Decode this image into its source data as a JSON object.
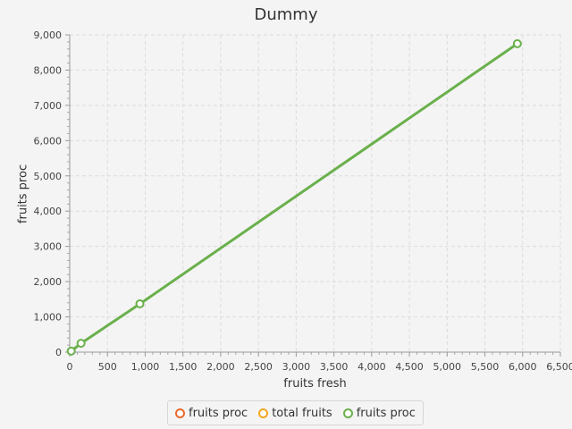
{
  "chart_data": {
    "type": "line",
    "title": "Dummy",
    "xlabel": "fruits fresh",
    "ylabel": "fruits proc",
    "xlim": [
      0,
      6500
    ],
    "ylim": [
      0,
      9000
    ],
    "x_ticks": [
      0,
      500,
      1000,
      1500,
      2000,
      2500,
      3000,
      3500,
      4000,
      4500,
      5000,
      5500,
      6000,
      6500
    ],
    "y_ticks": [
      0,
      1000,
      2000,
      3000,
      4000,
      5000,
      6000,
      7000,
      8000,
      9000
    ],
    "x_tick_labels": [
      "0",
      "500",
      "1,000",
      "1,500",
      "2,000",
      "2,500",
      "3,000",
      "3,500",
      "4,000",
      "4,500",
      "5,000",
      "5,500",
      "6,000",
      "6,500"
    ],
    "y_tick_labels": [
      "0",
      "1,000",
      "2,000",
      "3,000",
      "4,000",
      "5,000",
      "6,000",
      "7,000",
      "8,000",
      "9,000"
    ],
    "grid": true,
    "legend_position": "bottom",
    "series": [
      {
        "name": "fruits proc",
        "color": "#e8692c",
        "points": []
      },
      {
        "name": "total fruits",
        "color": "#f5a623",
        "points": []
      },
      {
        "name": "fruits proc",
        "color": "#6ab04c",
        "points": [
          [
            20,
            30
          ],
          [
            150,
            250
          ],
          [
            930,
            1370
          ],
          [
            5930,
            8750
          ]
        ]
      }
    ]
  }
}
